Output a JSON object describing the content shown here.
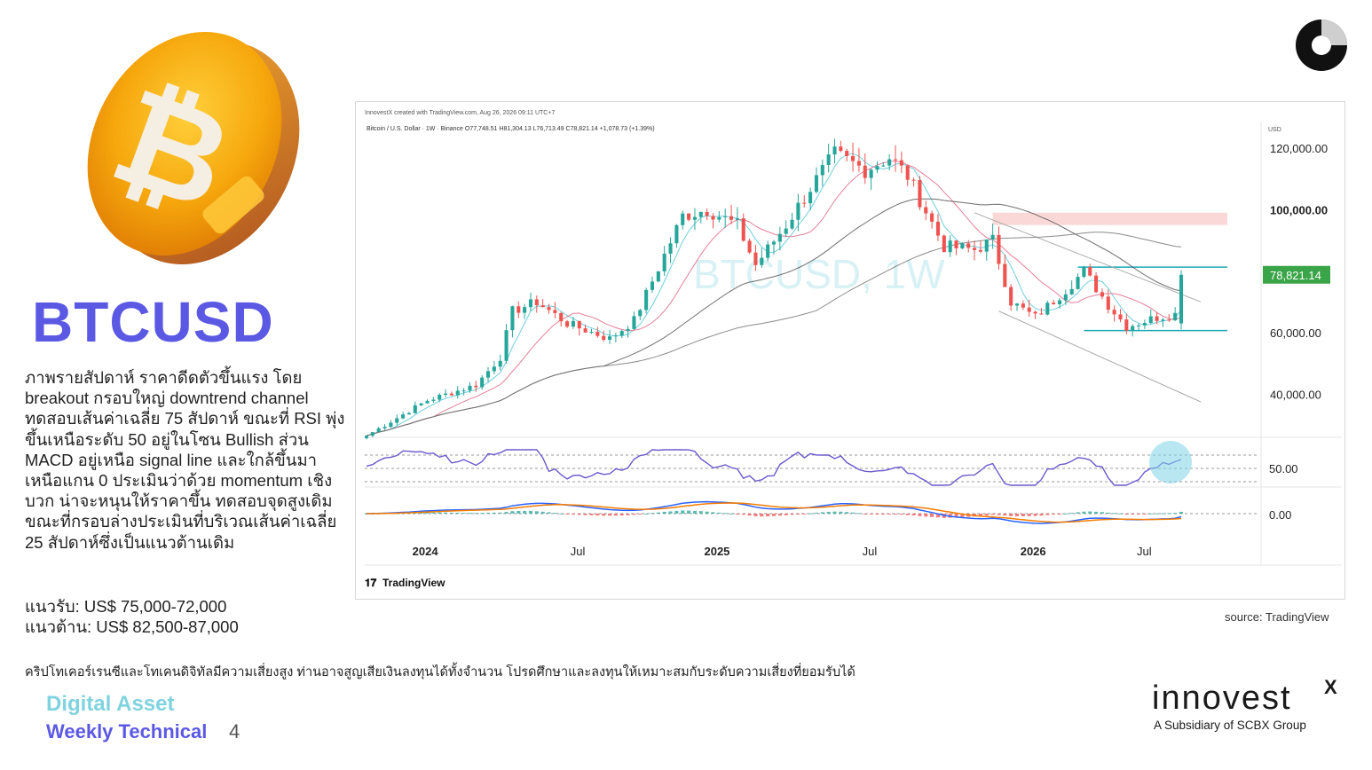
{
  "title": "BTCUSD",
  "description": "ภาพรายสัปดาห์ ราคาดีดตัวขึ้นแรง โดย breakout กรอบใหญ่ downtrend channel ทดสอบเส้นค่าเฉลี่ย 75 สัปดาห์ ขณะที่ RSI พุ่งขึ้นเหนือระดับ 50 อยู่ในโซน Bullish ส่วน MACD อยู่เหนือ signal line และใกล้ขึ้นมาเหนือแกน 0 ประเมินว่าด้วย momentum เชิงบวก น่าจะหนุนให้ราคาขึ้น ทดสอบจุดสูงเดิม ขณะที่กรอบล่างประเมินที่บริเวณเส้นค่าเฉลี่ย 25 สัปดาห์ซึ่งเป็นแนวต้านเดิม",
  "support": "แนวรับ: US$ 75,000-72,000",
  "resistance": "แนวต้าน: US$ 82,500-87,000",
  "disclaimer": "คริปโทเคอร์เรนซีและโทเคนดิจิทัลมีความเสี่ยงสูง ท่านอาจสูญเสียเงินลงทุนได้ทั้งจำนวน โปรดศึกษาและลงทุนให้เหมาะสมกับระดับความเสี่ยงที่ยอมรับได้",
  "footer": {
    "line1": "Digital Asset",
    "line2": "Weekly Technical",
    "page": "4"
  },
  "brand": {
    "name": "innovest",
    "mark": "X",
    "subtitle": "A Subsidiary of SCBX Group"
  },
  "source": "source: TradingView",
  "colors": {
    "accent": "#5b59e3",
    "teal": "#7fd3df",
    "up": "#26a69a",
    "down": "#ef5350",
    "current": "#3aa548"
  },
  "chart_data": {
    "type": "candlestick",
    "header_line1": "InnovestX created with TradingView.com, Aug 26, 2026 09:11 UTC+7",
    "header_line2": "Bitcoin / U.S. Dollar · 1W · Binance  O77,748.51 H81,304.13 L76,713.49 C78,821.14 +1,078.73 (+1.39%)",
    "watermark": "BTCUSD, 1W",
    "currency_label": "USD",
    "y_ticks": [
      "120,000.00",
      "100,000.00",
      "60,000.00",
      "40,000.00"
    ],
    "current_price": "78,821.14",
    "x_ticks": [
      "2024",
      "Jul",
      "2025",
      "Jul",
      "2026",
      "Jul"
    ],
    "price_keypoints": [
      {
        "week": 0,
        "price": 26500
      },
      {
        "week": 10,
        "price": 38000
      },
      {
        "week": 18,
        "price": 43000
      },
      {
        "week": 22,
        "price": 52000
      },
      {
        "week": 24,
        "price": 67000
      },
      {
        "week": 28,
        "price": 70000
      },
      {
        "week": 33,
        "price": 63000
      },
      {
        "week": 40,
        "price": 58000
      },
      {
        "week": 44,
        "price": 64000
      },
      {
        "week": 52,
        "price": 98000
      },
      {
        "week": 56,
        "price": 100000
      },
      {
        "week": 61,
        "price": 95000
      },
      {
        "week": 64,
        "price": 82000
      },
      {
        "week": 69,
        "price": 95000
      },
      {
        "week": 73,
        "price": 107000
      },
      {
        "week": 77,
        "price": 118000
      },
      {
        "week": 82,
        "price": 113000
      },
      {
        "week": 86,
        "price": 117000
      },
      {
        "week": 89,
        "price": 111000
      },
      {
        "week": 95,
        "price": 88000
      },
      {
        "week": 100,
        "price": 87000
      },
      {
        "week": 103,
        "price": 90000
      },
      {
        "week": 106,
        "price": 70000
      },
      {
        "week": 110,
        "price": 65000
      },
      {
        "week": 115,
        "price": 74000
      },
      {
        "week": 118,
        "price": 80000
      },
      {
        "week": 122,
        "price": 69000
      },
      {
        "week": 125,
        "price": 62000
      },
      {
        "week": 130,
        "price": 65000
      },
      {
        "week": 133,
        "price": 66000
      },
      {
        "week": 134,
        "price": 78821
      }
    ],
    "resistance_zone": [
      95000,
      99000
    ],
    "upper_line": 81300,
    "lower_line": 60700,
    "rsi_label": "50.00",
    "macd_label": "0.00",
    "brand_label": "TradingView"
  }
}
